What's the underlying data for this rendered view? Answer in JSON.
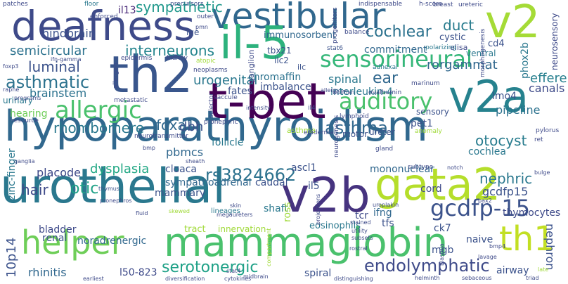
{
  "palette": [
    "#440154",
    "#46327e",
    "#365c8d",
    "#277f8e",
    "#1fa187",
    "#4ac16d",
    "#a0da39",
    "#fde725"
  ],
  "words": [
    {
      "text": "hypoparathyroidism",
      "color": "#31688e"
    },
    {
      "text": "urothelial",
      "color": "#2a788e"
    },
    {
      "text": "mammaglobin",
      "color": "#4ac16d"
    },
    {
      "text": "deafness",
      "color": "#3e4a89"
    },
    {
      "text": "t-bet",
      "color": "#440154"
    },
    {
      "text": "vestibular",
      "color": "#31688e"
    },
    {
      "text": "gata2",
      "color": "#b5de2b"
    },
    {
      "text": "il-5",
      "color": "#2db27d"
    },
    {
      "text": "v2a",
      "color": "#26828e"
    },
    {
      "text": "th2",
      "color": "#39568c"
    },
    {
      "text": "v2b",
      "color": "#46337f"
    },
    {
      "text": "helper",
      "color": "#6ece58"
    },
    {
      "text": "v2",
      "color": "#a5db36"
    },
    {
      "text": "th1",
      "color": "#c2df23"
    },
    {
      "text": "sensorineural",
      "color": "#35b779"
    },
    {
      "text": "auditory",
      "color": "#4ac16d"
    },
    {
      "text": "allergic",
      "color": "#4ac16d"
    },
    {
      "text": "gcdfp-15",
      "color": "#3b528b"
    },
    {
      "text": "rs3824662",
      "color": "#2c728e"
    },
    {
      "text": "endolymphatic",
      "color": "#3e4a89"
    },
    {
      "text": "asthmatic",
      "color": "#2c728e"
    },
    {
      "text": "asthma",
      "color": "#31688e"
    },
    {
      "text": "serotonergic",
      "color": "#1fa187"
    },
    {
      "text": "cochlear",
      "color": "#2c728e"
    },
    {
      "text": "luminal",
      "color": "#3b528b"
    },
    {
      "text": "interneurons",
      "color": "#25858e"
    },
    {
      "text": "rhombomere",
      "color": "#2a788e"
    },
    {
      "text": "foxa1",
      "color": "#31688e"
    },
    {
      "text": "otocyst",
      "color": "#287c8e"
    },
    {
      "text": "nephric",
      "color": "#2a788e"
    },
    {
      "text": "sympathetic",
      "color": "#1f988b"
    },
    {
      "text": "semicircular",
      "color": "#2c728e"
    },
    {
      "text": "duct",
      "color": "#287c8e"
    },
    {
      "text": "il13",
      "color": "#482878"
    },
    {
      "text": "ear",
      "color": "#31688e"
    },
    {
      "text": "hindbrain",
      "color": "#3b528b"
    },
    {
      "text": "brainstem",
      "color": "#2c728e"
    },
    {
      "text": "hair",
      "color": "#3e4a89"
    },
    {
      "text": "otic",
      "color": "#1fa187"
    },
    {
      "text": "dbh",
      "color": "#3b528b"
    },
    {
      "text": "placode",
      "color": "#3e4a89"
    },
    {
      "text": "rhinitis",
      "color": "#31688e"
    },
    {
      "text": "dysplasia",
      "color": "#22a884"
    },
    {
      "text": "cloaca",
      "color": "#3b528b"
    },
    {
      "text": "gcdfp15",
      "color": "#3b528b"
    },
    {
      "text": "mononuclear",
      "color": "#31688e"
    },
    {
      "text": "thymocytes",
      "color": "#3e4a89"
    },
    {
      "text": "noradrenergic",
      "color": "#31688e"
    },
    {
      "text": "rorgammat",
      "color": "#31688e"
    },
    {
      "text": "efferent",
      "color": "#277f8e"
    },
    {
      "text": "urogenital",
      "color": "#2a788e"
    },
    {
      "text": "chromaffin",
      "color": "#2c728e"
    },
    {
      "text": "spinal",
      "color": "#2a788e"
    },
    {
      "text": "interleukin-4",
      "color": "#2a788e"
    },
    {
      "text": "canals",
      "color": "#3e4a89"
    },
    {
      "text": "pipeline",
      "color": "#2c728e"
    },
    {
      "text": "immunosorbent",
      "color": "#31688e"
    },
    {
      "text": "commitment",
      "color": "#31688e"
    },
    {
      "text": "ascl1",
      "color": "#3b528b"
    },
    {
      "text": "sympathoadrenal",
      "color": "#31688e"
    },
    {
      "text": "pbmcs",
      "color": "#31688e"
    },
    {
      "text": "follicle",
      "color": "#2a788e"
    },
    {
      "text": "fates",
      "color": "#3b528b"
    },
    {
      "text": "imbalance",
      "color": "#3b528b"
    },
    {
      "text": "caudal",
      "color": "#3b528b"
    },
    {
      "text": "shaft",
      "color": "#2a788e"
    },
    {
      "text": "mammary",
      "color": "#3b528b"
    },
    {
      "text": "eosinophils",
      "color": "#2a788e"
    },
    {
      "text": "tcr",
      "color": "#3e4a89"
    },
    {
      "text": "ifng",
      "color": "#31688e"
    },
    {
      "text": "cord",
      "color": "#3e4a89"
    },
    {
      "text": "naive",
      "color": "#3b528b"
    },
    {
      "text": "mgb",
      "color": "#3b528b"
    },
    {
      "text": "bladder",
      "color": "#3e4a89"
    },
    {
      "text": "renal",
      "color": "#3b528b"
    },
    {
      "text": "spiral",
      "color": "#3b528b"
    },
    {
      "text": "airway",
      "color": "#3b528b"
    },
    {
      "text": "ck7",
      "color": "#3b528b"
    },
    {
      "text": "tfs",
      "color": "#3b528b"
    },
    {
      "text": "l50-823",
      "color": "#3e4a89"
    },
    {
      "text": "tract",
      "color": "#a0da39"
    },
    {
      "text": "innervation",
      "color": "#a0da39"
    },
    {
      "text": "il5",
      "color": "#3b528b"
    },
    {
      "text": "asthma",
      "color": "#a0da39"
    },
    {
      "text": "10p14",
      "color": "#3b528b"
    },
    {
      "text": "zinc-finger",
      "color": "#2a788e"
    },
    {
      "text": "nephron",
      "color": "#3b528b"
    },
    {
      "text": "pet1",
      "color": "#3b528b"
    },
    {
      "text": "cochlea",
      "color": "#2a788e"
    },
    {
      "text": "lmo4",
      "color": "#3b528b"
    },
    {
      "text": "phox2b",
      "color": "#2a788e"
    },
    {
      "text": "neurosensory",
      "color": "#3e4a89"
    },
    {
      "text": "cd4",
      "color": "#3b528b"
    },
    {
      "text": "sensory",
      "color": "#3b528b"
    },
    {
      "text": "motor",
      "color": "#3b528b"
    },
    {
      "text": "ureter",
      "color": "#3b528b"
    },
    {
      "text": "ventral",
      "color": "#2a788e"
    },
    {
      "text": "hearing",
      "color": "#6ece58"
    },
    {
      "text": "cystic",
      "color": "#3b528b"
    },
    {
      "text": "urinary",
      "color": "#2a788e"
    },
    {
      "text": "tbx21",
      "color": "#3b528b"
    },
    {
      "text": "ilc2",
      "color": "#3b528b"
    },
    {
      "text": "ige",
      "color": "#3b528b"
    },
    {
      "text": "ganglion",
      "color": "#3e4a89"
    },
    {
      "text": "ilc",
      "color": "#3b528b"
    },
    {
      "text": "elisa",
      "color": "#3e4a89"
    },
    {
      "text": "stat6",
      "color": "#3b528b"
    },
    {
      "text": "epidermal",
      "color": "#3e4a89"
    },
    {
      "text": "lineages",
      "color": "#2a788e"
    },
    {
      "text": "thymus",
      "color": "#3b528b"
    },
    {
      "text": "pronephros",
      "color": "#3e4a89"
    },
    {
      "text": "ureteric",
      "color": "#3e4a89"
    },
    {
      "text": "patches",
      "color": "#3e4a89"
    },
    {
      "text": "floor",
      "color": "#2a788e"
    },
    {
      "text": "precursors",
      "color": "#3b528b"
    },
    {
      "text": "enforced",
      "color": "#3e4a89"
    },
    {
      "text": "indispensable",
      "color": "#3e4a89"
    },
    {
      "text": "breast",
      "color": "#3e4a89"
    },
    {
      "text": "h-score",
      "color": "#3e4a89"
    },
    {
      "text": "outer",
      "color": "#3e4a89"
    },
    {
      "text": "pmn",
      "color": "#3e4a89"
    },
    {
      "text": "balance",
      "color": "#3e4a89"
    },
    {
      "text": "progenitors",
      "color": "#3e4a89"
    },
    {
      "text": "polarizing",
      "color": "#2a788e"
    },
    {
      "text": "morphogenesis",
      "color": "#3e4a89"
    },
    {
      "text": "adnexal",
      "color": "#2a788e"
    },
    {
      "text": "marinum",
      "color": "#3e4a89"
    },
    {
      "text": "ovalbumin",
      "color": "#3e4a89"
    },
    {
      "text": "wolffian",
      "color": "#3e4a89"
    },
    {
      "text": "allergy",
      "color": "#3e4a89"
    },
    {
      "text": "il4",
      "color": "#3e4a89"
    },
    {
      "text": "lymphoid",
      "color": "#3e4a89"
    },
    {
      "text": "intensity",
      "color": "#3e4a89"
    },
    {
      "text": "saccule",
      "color": "#3e4a89"
    },
    {
      "text": "selector",
      "color": "#3e4a89"
    },
    {
      "text": "neoplasms",
      "color": "#3e4a89"
    },
    {
      "text": "atopic",
      "color": "#a0da39"
    },
    {
      "text": "kidney",
      "color": "#3e4a89"
    },
    {
      "text": "epidermis",
      "color": "#3e4a89"
    },
    {
      "text": "allergen",
      "color": "#3e4a89"
    },
    {
      "text": "ifn-gamma",
      "color": "#3e4a89"
    },
    {
      "text": "foxp3",
      "color": "#3e4a89"
    },
    {
      "text": "raphe",
      "color": "#3e4a89"
    },
    {
      "text": "programs",
      "color": "#3e4a89"
    },
    {
      "text": "metastatic",
      "color": "#3e4a89"
    },
    {
      "text": "resource",
      "color": "#3e4a89"
    },
    {
      "text": "neurotransmitter",
      "color": "#3e4a89"
    },
    {
      "text": "pronephric",
      "color": "#3e4a89"
    },
    {
      "text": "anomaly",
      "color": "#a0da39"
    },
    {
      "text": "pylorus",
      "color": "#3e4a89"
    },
    {
      "text": "ret",
      "color": "#3e4a89"
    },
    {
      "text": "gland",
      "color": "#3e4a89"
    },
    {
      "text": "neurogenesis",
      "color": "#3e4a89"
    },
    {
      "text": "bmp",
      "color": "#3e4a89"
    },
    {
      "text": "sheath",
      "color": "#3e4a89"
    },
    {
      "text": "ganglia",
      "color": "#3e4a89"
    },
    {
      "text": "subtype",
      "color": "#3e4a89"
    },
    {
      "text": "notch",
      "color": "#3e4a89"
    },
    {
      "text": "bulge",
      "color": "#3e4a89"
    },
    {
      "text": "skin",
      "color": "#3e4a89"
    },
    {
      "text": "megaureters",
      "color": "#3e4a89"
    },
    {
      "text": "uroplakin",
      "color": "#3e4a89"
    },
    {
      "text": "pax2",
      "color": "#3e4a89"
    },
    {
      "text": "skewed",
      "color": "#a0da39"
    },
    {
      "text": "fluid",
      "color": "#3e4a89"
    },
    {
      "text": "projections",
      "color": "#3e4a89"
    },
    {
      "text": "utility",
      "color": "#3e4a89"
    },
    {
      "text": "subsets",
      "color": "#3e4a89"
    },
    {
      "text": "stained",
      "color": "#3e4a89"
    },
    {
      "text": "blastula",
      "color": "#3e4a89"
    },
    {
      "text": "lavage",
      "color": "#3e4a89"
    },
    {
      "text": "bmp4",
      "color": "#3e4a89"
    },
    {
      "text": "rostral",
      "color": "#3e4a89"
    },
    {
      "text": "stat4",
      "color": "#3e4a89"
    },
    {
      "text": "midbrain",
      "color": "#3e4a89"
    },
    {
      "text": "cytokines",
      "color": "#3e4a89"
    },
    {
      "text": "diversification",
      "color": "#3e4a89"
    },
    {
      "text": "earliest",
      "color": "#3e4a89"
    },
    {
      "text": "distinguishing",
      "color": "#3e4a89"
    },
    {
      "text": "helminth",
      "color": "#3e4a89"
    },
    {
      "text": "sebaceous",
      "color": "#3e4a89"
    },
    {
      "text": "triad",
      "color": "#3e4a89"
    },
    {
      "text": "late",
      "color": "#a0da39"
    },
    {
      "text": "compartment",
      "color": "#a0da39"
    },
    {
      "text": "ross",
      "color": "#a0da39"
    },
    {
      "text": "cross",
      "color": "#a0da39"
    }
  ]
}
